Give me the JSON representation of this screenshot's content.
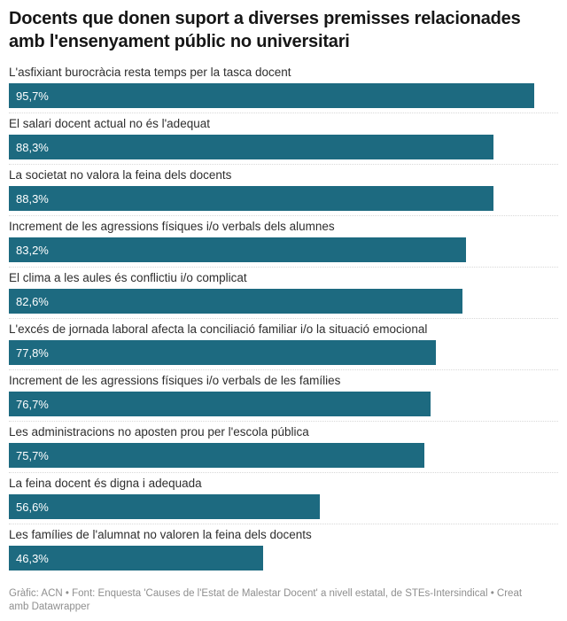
{
  "header": {
    "title": "Docents que donen suport a diverses premisses relacionades amb l'ensenyament públic no universitari"
  },
  "footer": {
    "text": "Gràfic: ACN • Font: Enquesta 'Causes de l'Estat de Malestar Docent' a nivell estatal, de STEs-Intersindical • Creat amb Datawrapper"
  },
  "colors": {
    "bar": "#1d6a80",
    "bar_value_text": "#ffffff",
    "title_text": "#161616",
    "label_text": "#2e2e2e",
    "separator": "#d8d8d8",
    "footer_text": "#8f8f8f",
    "background": "#ffffff"
  },
  "chart_data": {
    "type": "bar",
    "orientation": "horizontal",
    "title": "Docents que donen suport a diverses premisses relacionades amb l'ensenyament públic no universitari",
    "xlabel": "",
    "ylabel": "",
    "xlim": [
      0,
      100
    ],
    "grid": false,
    "legend": false,
    "value_label_position": "inside-start",
    "value_format": "percent-comma-decimal",
    "categories": [
      "L'asfixiant burocràcia resta temps per la tasca docent",
      "El salari docent actual no és l'adequat",
      "La societat no valora la feina dels docents",
      "Increment de les agressions físiques i/o verbals dels alumnes",
      "El clima a les aules és conflictiu i/o complicat",
      "L'excés de jornada laboral afecta la conciliació familiar i/o la situació emocional",
      "Increment de les agressions físiques i/o verbals de les famílies",
      "Les administracions no aposten prou per l'escola pública",
      "La feina docent és digna i adequada",
      "Les famílies de l'alumnat no valoren la feina dels docents"
    ],
    "values": [
      95.7,
      88.3,
      88.3,
      83.2,
      82.6,
      77.8,
      76.7,
      75.7,
      56.6,
      46.3
    ],
    "value_labels": [
      "95,7%",
      "88,3%",
      "88,3%",
      "83,2%",
      "82,6%",
      "77,8%",
      "76,7%",
      "75,7%",
      "56,6%",
      "46,3%"
    ]
  }
}
